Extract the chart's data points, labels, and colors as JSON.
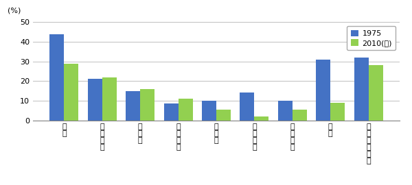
{
  "categories": [
    "日\n本",
    "ア\nメ\nリ\nカ",
    "カ\nナ\nダ",
    "イ\nギ\nリ\nス",
    "ド\nイ\nツ",
    "フ\nラ\nン\nス",
    "イ\nタ\nリ\nア",
    "香\n港",
    "ポ\nシ\nー\nン\nガ\nル"
  ],
  "values_1975": [
    44,
    21,
    15,
    8.5,
    10,
    14,
    10,
    31,
    32
  ],
  "values_2010": [
    29,
    22,
    16,
    11,
    5.5,
    2,
    5.5,
    9,
    28
  ],
  "color_1975": "#4472c4",
  "color_2010": "#92d050",
  "legend_1975": "1975",
  "legend_2010": "2010(年)",
  "ylabel": "(%)",
  "ylim": [
    0,
    50
  ],
  "yticks": [
    0,
    10,
    20,
    30,
    40,
    50
  ],
  "background_color": "#ffffff",
  "bar_width": 0.38
}
